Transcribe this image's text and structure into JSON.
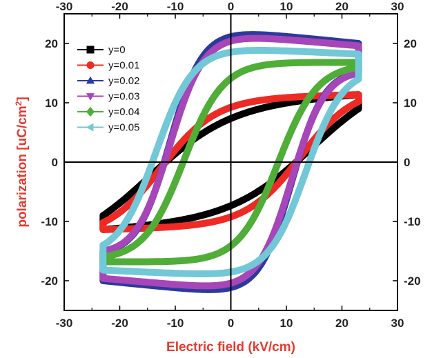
{
  "chart_data": {
    "type": "line",
    "xlabel": "Electric field (kV/cm)",
    "ylabel_main": "polarization [uC/cm",
    "ylabel_sup": "2",
    "ylabel_end": "]",
    "axis_color": "#e53a2f",
    "xlim": [
      -30,
      30
    ],
    "ylim": [
      -25,
      25
    ],
    "xticks": [
      -30,
      -20,
      -10,
      0,
      10,
      20,
      30
    ],
    "yticks": [
      -20,
      -10,
      0,
      10,
      20
    ],
    "grid": false,
    "legend_position": "top-left",
    "series": [
      {
        "name": "y=0",
        "color": "#000000",
        "marker": "square",
        "Ps": 11.5,
        "Pr": 8.8,
        "Ec": 14.5,
        "Emax": 23,
        "tipUpper": 9.0,
        "tipLower": -9.0
      },
      {
        "name": "y=0.01",
        "color": "#ee2a24",
        "marker": "circle",
        "Ps": 11.4,
        "Pr": 9.8,
        "Ec": 12.5,
        "Emax": 23,
        "tipUpper": 10.2,
        "tipLower": -10.2
      },
      {
        "name": "y=0.02",
        "color": "#2b3a9b",
        "marker": "triangle-up",
        "Ps": 20.0,
        "Pr": 19.0,
        "Ec": 11.0,
        "Emax": 23,
        "tipUpper": 15.0,
        "tipLower": -15.0
      },
      {
        "name": "y=0.03",
        "color": "#a646b8",
        "marker": "triangle-down",
        "Ps": 19.6,
        "Pr": 18.5,
        "Ec": 11.0,
        "Emax": 23,
        "tipUpper": 15.0,
        "tipLower": -15.0
      },
      {
        "name": "y=0.04",
        "color": "#4fad38",
        "marker": "diamond",
        "Ps": 16.8,
        "Pr": 14.0,
        "Ec": 8.5,
        "Emax": 23,
        "tipUpper": 16.0,
        "tipLower": -16.0
      },
      {
        "name": "y=0.05",
        "color": "#72c8d6",
        "marker": "triangle-left",
        "Ps": 18.2,
        "Pr": 17.5,
        "Ec": 13.5,
        "Emax": 23,
        "tipUpper": 14.0,
        "tipLower": -14.0
      }
    ]
  }
}
